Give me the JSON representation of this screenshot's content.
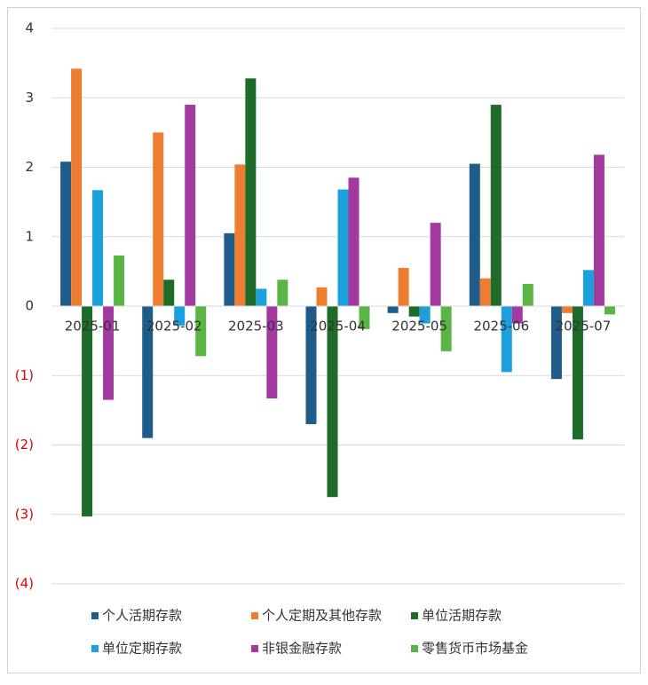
{
  "chart_data": {
    "type": "bar",
    "categories": [
      "2025-01",
      "2025-02",
      "2025-03",
      "2025-04",
      "2025-05",
      "2025-06",
      "2025-07"
    ],
    "series": [
      {
        "name": "个人活期存款",
        "color": "#1f5c8a",
        "values": [
          2.08,
          -1.9,
          1.05,
          -1.7,
          -0.1,
          2.05,
          -1.05
        ]
      },
      {
        "name": "个人定期及其他存款",
        "color": "#ed7d31",
        "values": [
          3.42,
          2.5,
          2.04,
          0.27,
          0.55,
          0.4,
          -0.1
        ]
      },
      {
        "name": "单位活期存款",
        "color": "#1e6b2a",
        "values": [
          -3.03,
          0.38,
          3.28,
          -2.75,
          -0.15,
          2.9,
          -1.92
        ]
      },
      {
        "name": "单位定期存款",
        "color": "#1ca0dc",
        "values": [
          1.67,
          -0.28,
          0.25,
          1.68,
          -0.25,
          -0.95,
          0.52
        ]
      },
      {
        "name": "非银金融存款",
        "color": "#a23a9f",
        "values": [
          -1.35,
          2.9,
          -1.33,
          1.85,
          1.2,
          -0.25,
          2.18
        ]
      },
      {
        "name": "零售货币市场基金",
        "color": "#5bb544",
        "values": [
          0.73,
          -0.72,
          0.38,
          -0.33,
          -0.65,
          0.32,
          -0.12
        ]
      }
    ],
    "ylim": [
      -4,
      4
    ],
    "yticks": [
      {
        "value": -4,
        "label": "(4)"
      },
      {
        "value": -3,
        "label": "(3)"
      },
      {
        "value": -2,
        "label": "(2)"
      },
      {
        "value": -1,
        "label": "(1)"
      },
      0,
      1,
      2,
      3,
      4
    ],
    "negative_tick_color": "#e00000",
    "grid": true,
    "legend": "bottom"
  }
}
